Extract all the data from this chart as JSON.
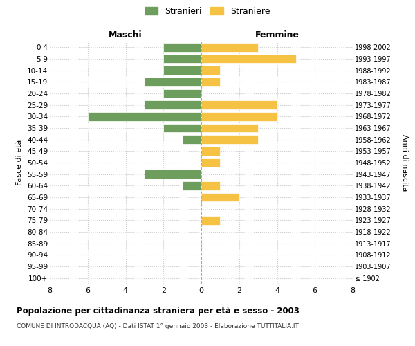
{
  "age_groups": [
    "100+",
    "95-99",
    "90-94",
    "85-89",
    "80-84",
    "75-79",
    "70-74",
    "65-69",
    "60-64",
    "55-59",
    "50-54",
    "45-49",
    "40-44",
    "35-39",
    "30-34",
    "25-29",
    "20-24",
    "15-19",
    "10-14",
    "5-9",
    "0-4"
  ],
  "birth_years": [
    "≤ 1902",
    "1903-1907",
    "1908-1912",
    "1913-1917",
    "1918-1922",
    "1923-1927",
    "1928-1932",
    "1933-1937",
    "1938-1942",
    "1943-1947",
    "1948-1952",
    "1953-1957",
    "1958-1962",
    "1963-1967",
    "1968-1972",
    "1973-1977",
    "1978-1982",
    "1983-1987",
    "1988-1992",
    "1993-1997",
    "1998-2002"
  ],
  "stranieri": [
    0,
    0,
    0,
    0,
    0,
    0,
    0,
    0,
    1,
    3,
    0,
    0,
    1,
    2,
    6,
    3,
    2,
    3,
    2,
    2,
    2
  ],
  "straniere": [
    0,
    0,
    0,
    0,
    0,
    1,
    0,
    2,
    1,
    0,
    1,
    1,
    3,
    3,
    4,
    4,
    0,
    1,
    1,
    5,
    3
  ],
  "stranieri_color": "#6e9e5e",
  "straniere_color": "#f5c244",
  "xlim": 8,
  "title": "Popolazione per cittadinanza straniera per età e sesso - 2003",
  "subtitle": "COMUNE DI INTRODACQUA (AQ) - Dati ISTAT 1° gennaio 2003 - Elaborazione TUTTITALIA.IT",
  "ylabel_left": "Fasce di età",
  "ylabel_right": "Anni di nascita",
  "xlabel_left": "Maschi",
  "xlabel_right": "Femmine",
  "legend_stranieri": "Stranieri",
  "legend_straniere": "Straniere",
  "bg_color": "#ffffff",
  "grid_color": "#cccccc"
}
